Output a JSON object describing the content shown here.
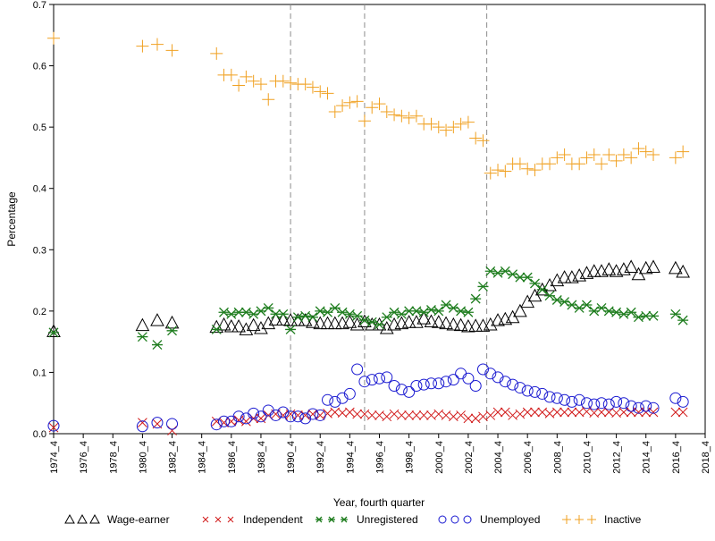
{
  "chart_data": {
    "type": "scatter",
    "title": "",
    "xlabel": "Year, fourth quarter",
    "ylabel": "Percentage",
    "xlim": [
      1974,
      2018
    ],
    "ylim": [
      0,
      0.7
    ],
    "grid": false,
    "legend_position": "bottom",
    "x_ticks": [
      1974,
      1976,
      1978,
      1980,
      1982,
      1984,
      1986,
      1988,
      1990,
      1992,
      1994,
      1996,
      1998,
      2000,
      2002,
      2004,
      2006,
      2008,
      2010,
      2012,
      2014,
      2016,
      2018
    ],
    "x_tick_labels": [
      "1974_4",
      "1976_4",
      "1978_4",
      "1980_4",
      "1982_4",
      "1984_4",
      "1986_4",
      "1988_4",
      "1990_4",
      "1992_4",
      "1994_4",
      "1996_4",
      "1998_4",
      "2000_4",
      "2002_4",
      "2004_4",
      "2006_4",
      "2008_4",
      "2010_4",
      "2012_4",
      "2014_4",
      "2016_4",
      "2018_4"
    ],
    "y_ticks": [
      0.0,
      0.1,
      0.2,
      0.3,
      0.4,
      0.5,
      0.6,
      0.7
    ],
    "y_tick_labels": [
      "0.0",
      "0.1",
      "0.2",
      "0.3",
      "0.4",
      "0.5",
      "0.6",
      "0.7"
    ],
    "reference_lines_x": [
      1990.0,
      1995.0,
      2003.25
    ],
    "series": [
      {
        "name": "Wage-earner",
        "marker": "triangle",
        "color": "#000000",
        "x": [
          1974,
          1980,
          1981,
          1982,
          1985,
          1985.5,
          1986,
          1986.5,
          1987,
          1987.5,
          1988,
          1988.5,
          1989,
          1989.5,
          1990,
          1990.5,
          1991,
          1991.5,
          1992,
          1992.5,
          1993,
          1993.5,
          1994,
          1994.5,
          1995,
          1995.5,
          1996,
          1996.5,
          1997,
          1997.5,
          1998,
          1998.5,
          1999,
          1999.5,
          2000,
          2000.5,
          2001,
          2001.5,
          2002,
          2002.5,
          2003,
          2003.5,
          2004,
          2004.5,
          2005,
          2005.5,
          2006,
          2006.5,
          2007,
          2007.5,
          2008,
          2008.5,
          2009,
          2009.5,
          2010,
          2010.5,
          2011,
          2011.5,
          2012,
          2012.5,
          2013,
          2013.5,
          2014,
          2014.5,
          2016,
          2016.5
        ],
        "y": [
          0.167,
          0.177,
          0.185,
          0.181,
          0.174,
          0.178,
          0.175,
          0.175,
          0.17,
          0.177,
          0.172,
          0.18,
          0.186,
          0.186,
          0.185,
          0.185,
          0.185,
          0.182,
          0.18,
          0.18,
          0.18,
          0.18,
          0.182,
          0.178,
          0.183,
          0.178,
          0.178,
          0.172,
          0.178,
          0.18,
          0.182,
          0.182,
          0.188,
          0.183,
          0.182,
          0.18,
          0.178,
          0.177,
          0.175,
          0.176,
          0.176,
          0.178,
          0.185,
          0.187,
          0.19,
          0.2,
          0.215,
          0.225,
          0.235,
          0.242,
          0.25,
          0.255,
          0.255,
          0.258,
          0.262,
          0.265,
          0.265,
          0.268,
          0.265,
          0.268,
          0.272,
          0.26,
          0.27,
          0.272,
          0.27,
          0.264
        ]
      },
      {
        "name": "Independent",
        "marker": "x",
        "color": "#d11a1a",
        "x": [
          1974,
          1980,
          1981,
          1982,
          1985,
          1985.5,
          1986,
          1986.5,
          1987,
          1987.5,
          1988,
          1988.5,
          1989,
          1989.5,
          1990,
          1990.5,
          1991,
          1991.5,
          1992,
          1992.5,
          1993,
          1993.5,
          1994,
          1994.5,
          1995,
          1995.5,
          1996,
          1996.5,
          1997,
          1997.5,
          1998,
          1998.5,
          1999,
          1999.5,
          2000,
          2000.5,
          2001,
          2001.5,
          2002,
          2002.5,
          2003,
          2003.5,
          2004,
          2004.5,
          2005,
          2005.5,
          2006,
          2006.5,
          2007,
          2007.5,
          2008,
          2008.5,
          2009,
          2009.5,
          2010,
          2010.5,
          2011,
          2011.5,
          2012,
          2012.5,
          2013,
          2013.5,
          2014,
          2014.5,
          2016,
          2016.5
        ],
        "y": [
          0.01,
          0.018,
          0.016,
          0.005,
          0.02,
          0.018,
          0.02,
          0.022,
          0.02,
          0.025,
          0.025,
          0.03,
          0.032,
          0.03,
          0.032,
          0.03,
          0.03,
          0.032,
          0.03,
          0.033,
          0.035,
          0.034,
          0.035,
          0.032,
          0.032,
          0.03,
          0.03,
          0.028,
          0.032,
          0.03,
          0.03,
          0.03,
          0.03,
          0.03,
          0.032,
          0.03,
          0.028,
          0.03,
          0.025,
          0.025,
          0.028,
          0.03,
          0.035,
          0.035,
          0.03,
          0.032,
          0.035,
          0.035,
          0.035,
          0.033,
          0.035,
          0.035,
          0.035,
          0.035,
          0.036,
          0.034,
          0.035,
          0.035,
          0.034,
          0.035,
          0.035,
          0.035,
          0.035,
          0.035,
          0.035,
          0.035
        ]
      },
      {
        "name": "Unregistered",
        "marker": "star",
        "color": "#1e7d1e",
        "x": [
          1974,
          1980,
          1981,
          1982,
          1985,
          1985.5,
          1986,
          1986.5,
          1987,
          1987.5,
          1988,
          1988.5,
          1989,
          1989.5,
          1990,
          1990.5,
          1991,
          1991.5,
          1992,
          1992.5,
          1993,
          1993.5,
          1994,
          1994.5,
          1995,
          1995.5,
          1996,
          1996.5,
          1997,
          1997.5,
          1998,
          1998.5,
          1999,
          1999.5,
          2000,
          2000.5,
          2001,
          2001.5,
          2002,
          2002.5,
          2003,
          2003.5,
          2004,
          2004.5,
          2005,
          2005.5,
          2006,
          2006.5,
          2007,
          2007.5,
          2008,
          2008.5,
          2009,
          2009.5,
          2010,
          2010.5,
          2011,
          2011.5,
          2012,
          2012.5,
          2013,
          2013.5,
          2014,
          2014.5,
          2016,
          2016.5
        ],
        "y": [
          0.165,
          0.158,
          0.145,
          0.168,
          0.17,
          0.198,
          0.195,
          0.198,
          0.198,
          0.195,
          0.2,
          0.205,
          0.195,
          0.195,
          0.17,
          0.19,
          0.192,
          0.19,
          0.2,
          0.198,
          0.205,
          0.198,
          0.195,
          0.192,
          0.185,
          0.182,
          0.178,
          0.19,
          0.198,
          0.195,
          0.2,
          0.2,
          0.198,
          0.202,
          0.2,
          0.21,
          0.205,
          0.2,
          0.198,
          0.22,
          0.24,
          0.265,
          0.262,
          0.265,
          0.26,
          0.255,
          0.255,
          0.245,
          0.235,
          0.225,
          0.218,
          0.215,
          0.21,
          0.205,
          0.21,
          0.2,
          0.205,
          0.2,
          0.198,
          0.195,
          0.198,
          0.19,
          0.192,
          0.192,
          0.195,
          0.185
        ]
      },
      {
        "name": "Unemployed",
        "marker": "circle",
        "color": "#1a1ad1",
        "x": [
          1974,
          1980,
          1981,
          1982,
          1985,
          1985.5,
          1986,
          1986.5,
          1987,
          1987.5,
          1988,
          1988.5,
          1989,
          1989.5,
          1990,
          1990.5,
          1991,
          1991.5,
          1992,
          1992.5,
          1993,
          1993.5,
          1994,
          1994.5,
          1995,
          1995.5,
          1996,
          1996.5,
          1997,
          1997.5,
          1998,
          1998.5,
          1999,
          1999.5,
          2000,
          2000.5,
          2001,
          2001.5,
          2002,
          2002.5,
          2003,
          2003.5,
          2004,
          2004.5,
          2005,
          2005.5,
          2006,
          2006.5,
          2007,
          2007.5,
          2008,
          2008.5,
          2009,
          2009.5,
          2010,
          2010.5,
          2011,
          2011.5,
          2012,
          2012.5,
          2013,
          2013.5,
          2014,
          2014.5,
          2016,
          2016.5
        ],
        "y": [
          0.013,
          0.012,
          0.018,
          0.016,
          0.015,
          0.02,
          0.02,
          0.028,
          0.025,
          0.033,
          0.028,
          0.038,
          0.03,
          0.035,
          0.028,
          0.028,
          0.025,
          0.032,
          0.03,
          0.055,
          0.052,
          0.058,
          0.065,
          0.105,
          0.085,
          0.088,
          0.09,
          0.092,
          0.078,
          0.072,
          0.068,
          0.078,
          0.08,
          0.082,
          0.082,
          0.085,
          0.088,
          0.098,
          0.09,
          0.078,
          0.105,
          0.098,
          0.092,
          0.085,
          0.08,
          0.075,
          0.07,
          0.068,
          0.065,
          0.06,
          0.058,
          0.055,
          0.052,
          0.055,
          0.05,
          0.048,
          0.05,
          0.048,
          0.052,
          0.05,
          0.045,
          0.042,
          0.045,
          0.042,
          0.058,
          0.052
        ]
      },
      {
        "name": "Inactive",
        "marker": "plus",
        "color": "#f0a020",
        "x": [
          1974,
          1980,
          1981,
          1982,
          1985,
          1985.5,
          1986,
          1986.5,
          1987,
          1987.5,
          1988,
          1988.5,
          1989,
          1989.5,
          1990,
          1990.5,
          1991,
          1991.5,
          1992,
          1992.5,
          1993,
          1993.5,
          1994,
          1994.5,
          1995,
          1995.5,
          1996,
          1996.5,
          1997,
          1997.5,
          1998,
          1998.5,
          1999,
          1999.5,
          2000,
          2000.5,
          2001,
          2001.5,
          2002,
          2002.5,
          2003,
          2003.5,
          2004,
          2004.5,
          2005,
          2005.5,
          2006,
          2006.5,
          2007,
          2007.5,
          2008,
          2008.5,
          2009,
          2009.5,
          2010,
          2010.5,
          2011,
          2011.5,
          2012,
          2012.5,
          2013,
          2013.5,
          2014,
          2014.5,
          2016,
          2016.5
        ],
        "y": [
          0.645,
          0.632,
          0.635,
          0.625,
          0.62,
          0.585,
          0.585,
          0.568,
          0.582,
          0.575,
          0.57,
          0.545,
          0.575,
          0.575,
          0.572,
          0.57,
          0.57,
          0.565,
          0.558,
          0.555,
          0.525,
          0.535,
          0.54,
          0.542,
          0.51,
          0.532,
          0.538,
          0.525,
          0.52,
          0.518,
          0.515,
          0.518,
          0.505,
          0.505,
          0.5,
          0.495,
          0.5,
          0.505,
          0.508,
          0.482,
          0.478,
          0.425,
          0.43,
          0.428,
          0.44,
          0.44,
          0.432,
          0.43,
          0.44,
          0.44,
          0.45,
          0.455,
          0.44,
          0.44,
          0.45,
          0.455,
          0.44,
          0.455,
          0.445,
          0.455,
          0.45,
          0.465,
          0.46,
          0.455,
          0.45,
          0.46
        ]
      }
    ]
  }
}
